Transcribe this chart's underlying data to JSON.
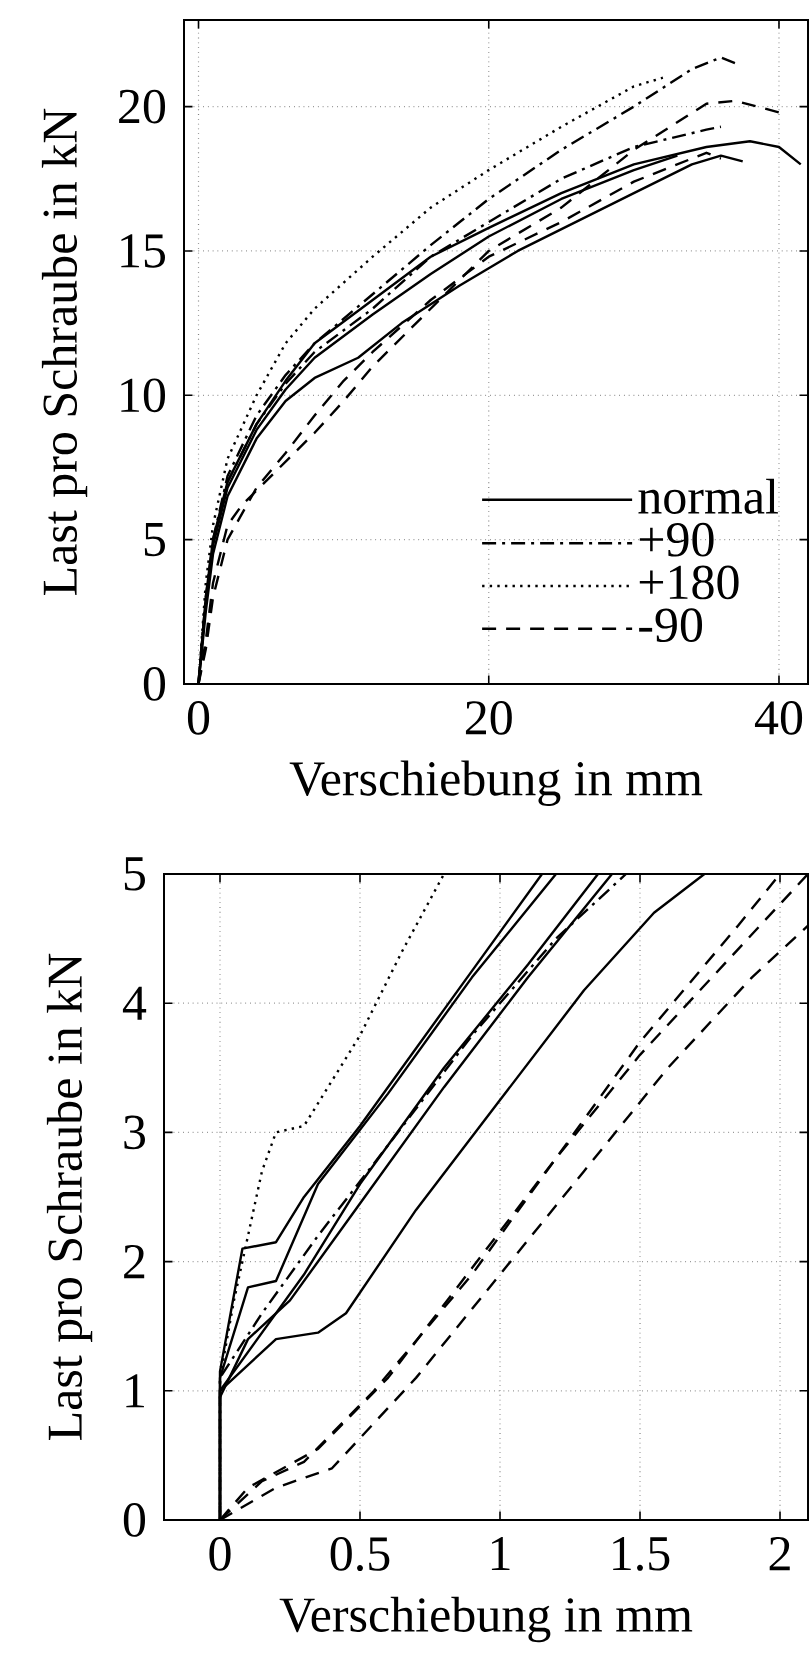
{
  "chart_data": [
    {
      "type": "line",
      "xlabel": "Verschiebung in mm",
      "ylabel": "Last pro Schraube in kN",
      "xlim": [
        -1,
        42
      ],
      "ylim": [
        0,
        23
      ],
      "xticks": [
        0,
        20,
        40
      ],
      "yticks": [
        0,
        5,
        10,
        15,
        20
      ],
      "grid": true,
      "legend": "bottom right",
      "series": [
        {
          "name": "normal",
          "color": "#000000",
          "line_style": "solid",
          "x": [
            0,
            0.5,
            1,
            2,
            4,
            6,
            8,
            12,
            16,
            20,
            25,
            30,
            35,
            38,
            40,
            41.5
          ],
          "values": [
            0,
            3,
            5,
            7,
            9,
            10.5,
            11.8,
            13.3,
            14.8,
            15.8,
            17,
            18,
            18.6,
            18.8,
            18.6,
            18
          ]
        },
        {
          "color": "#000000",
          "line_style": "solid",
          "x": [
            0,
            0.5,
            1,
            2,
            4,
            6,
            8,
            11,
            14,
            18,
            22,
            26,
            30,
            34,
            36,
            37.5
          ],
          "values": [
            0,
            2.5,
            4.5,
            6.5,
            8.5,
            9.8,
            10.6,
            11.3,
            12.5,
            13.8,
            15,
            16,
            17,
            18,
            18.3,
            18.1
          ]
        },
        {
          "color": "#000000",
          "line_style": "solid",
          "x": [
            0,
            0.5,
            1,
            2,
            4,
            6,
            8,
            12,
            16,
            20,
            25,
            30,
            33
          ],
          "values": [
            0,
            2.8,
            4.8,
            6.8,
            8.8,
            10.2,
            11.3,
            12.8,
            14.2,
            15.5,
            16.8,
            17.8,
            18.3
          ]
        },
        {
          "name": "+90",
          "color": "#000000",
          "line_style": "dashdot",
          "x": [
            0,
            0.5,
            1,
            2,
            4,
            6,
            8,
            12,
            16,
            20,
            25,
            30,
            34,
            36,
            37
          ],
          "values": [
            0,
            3,
            5,
            7.2,
            9.3,
            10.7,
            11.8,
            13.5,
            15.2,
            16.8,
            18.5,
            20,
            21.3,
            21.7,
            21.5
          ]
        },
        {
          "color": "#000000",
          "line_style": "dashdot",
          "x": [
            0,
            0.5,
            1,
            2,
            4,
            6,
            8,
            12,
            16,
            20,
            25,
            30,
            35,
            36
          ],
          "values": [
            0,
            2.9,
            4.9,
            7,
            9,
            10.4,
            11.5,
            13,
            14.8,
            16,
            17.5,
            18.6,
            19.2,
            19.3
          ]
        },
        {
          "name": "+180",
          "color": "#000000",
          "line_style": "dotted",
          "x": [
            0,
            0.5,
            1,
            2,
            4,
            6,
            8,
            12,
            16,
            20,
            25,
            30,
            32
          ],
          "values": [
            0,
            3.5,
            5.5,
            7.8,
            10,
            11.8,
            13,
            14.8,
            16.5,
            17.8,
            19.3,
            20.7,
            21
          ]
        },
        {
          "name": "-90",
          "color": "#000000",
          "line_style": "dashed",
          "x": [
            0,
            0.5,
            1,
            2,
            3,
            5,
            8,
            10,
            12,
            16,
            20,
            25,
            30,
            35,
            37,
            40
          ],
          "values": [
            0,
            1.5,
            3.5,
            5.5,
            6.2,
            7.2,
            8.7,
            9.8,
            11,
            13,
            15,
            16.5,
            18.5,
            20.1,
            20.2,
            19.8
          ]
        },
        {
          "color": "#000000",
          "line_style": "dashed",
          "x": [
            0,
            0.5,
            1,
            2,
            4,
            6,
            8,
            10,
            12,
            16,
            20,
            25,
            30,
            35,
            36
          ],
          "values": [
            0,
            1.2,
            3,
            5,
            6.8,
            8,
            9.3,
            10.5,
            11.5,
            13.3,
            14.8,
            16,
            17.4,
            18.4,
            18.2
          ]
        }
      ]
    },
    {
      "type": "line",
      "xlabel": "Verschiebung in mm",
      "ylabel": "Last pro Schraube in kN",
      "xlim": [
        -0.2,
        2.1
      ],
      "ylim": [
        0,
        5
      ],
      "xticks": [
        0,
        0.5,
        1,
        1.5,
        2
      ],
      "yticks": [
        0,
        1,
        2,
        3,
        4,
        5
      ],
      "grid": true,
      "series": [
        {
          "color": "#000000",
          "line_style": "solid",
          "x": [
            0,
            0,
            0.08,
            0.2,
            0.3,
            0.5,
            0.8,
            1.0,
            1.15
          ],
          "values": [
            0,
            1.15,
            2.1,
            2.15,
            2.5,
            3.05,
            3.95,
            4.55,
            5
          ]
        },
        {
          "color": "#000000",
          "line_style": "solid",
          "x": [
            0,
            0,
            0.1,
            0.2,
            0.35,
            0.6,
            0.9,
            1.2
          ],
          "values": [
            0,
            1.1,
            1.8,
            1.85,
            2.6,
            3.3,
            4.2,
            5
          ]
        },
        {
          "color": "#000000",
          "line_style": "solid",
          "x": [
            0,
            0,
            0.15,
            0.3,
            0.5,
            0.8,
            1.1,
            1.35
          ],
          "values": [
            0,
            1.0,
            1.45,
            1.9,
            2.6,
            3.5,
            4.3,
            5
          ]
        },
        {
          "color": "#000000",
          "line_style": "solid",
          "x": [
            0,
            0,
            0.2,
            0.35,
            0.45,
            0.7,
            1.0,
            1.3,
            1.55,
            1.73
          ],
          "values": [
            0,
            1.0,
            1.4,
            1.45,
            1.6,
            2.4,
            3.25,
            4.1,
            4.7,
            5
          ]
        },
        {
          "color": "#000000",
          "line_style": "solid",
          "x": [
            0,
            0,
            0.1,
            0.25,
            0.5,
            0.8,
            1.1,
            1.4
          ],
          "values": [
            0,
            0.95,
            1.4,
            1.7,
            2.45,
            3.35,
            4.2,
            5
          ]
        },
        {
          "color": "#000000",
          "line_style": "dashdot",
          "x": [
            0,
            0,
            0.15,
            0.35,
            0.6,
            0.9,
            1.2,
            1.45
          ],
          "values": [
            0,
            1.1,
            1.6,
            2.2,
            2.9,
            3.75,
            4.5,
            5
          ]
        },
        {
          "color": "#000000",
          "line_style": "dotted",
          "x": [
            0,
            0,
            0.05,
            0.15,
            0.2,
            0.3,
            0.5,
            0.65,
            0.8
          ],
          "values": [
            0,
            1.1,
            1.7,
            2.7,
            3.0,
            3.05,
            3.75,
            4.4,
            5
          ]
        },
        {
          "color": "#000000",
          "line_style": "dashed",
          "x": [
            0,
            0.15,
            0.3,
            0.55,
            0.9,
            1.2,
            1.5,
            1.8,
            2.1
          ],
          "values": [
            0,
            0.3,
            0.45,
            1.0,
            1.9,
            2.8,
            3.6,
            4.3,
            5
          ]
        },
        {
          "color": "#000000",
          "line_style": "dashed",
          "x": [
            0,
            0.2,
            0.4,
            0.7,
            1.0,
            1.3,
            1.6,
            1.9,
            2.1
          ],
          "values": [
            0,
            0.25,
            0.4,
            1.1,
            1.9,
            2.7,
            3.5,
            4.2,
            4.6
          ]
        },
        {
          "color": "#000000",
          "line_style": "dashed",
          "x": [
            0,
            0.1,
            0.35,
            0.6,
            0.9,
            1.2,
            1.5,
            1.85,
            2.0
          ],
          "values": [
            0,
            0.25,
            0.55,
            1.1,
            1.95,
            2.8,
            3.7,
            4.6,
            5.0
          ]
        }
      ]
    }
  ]
}
